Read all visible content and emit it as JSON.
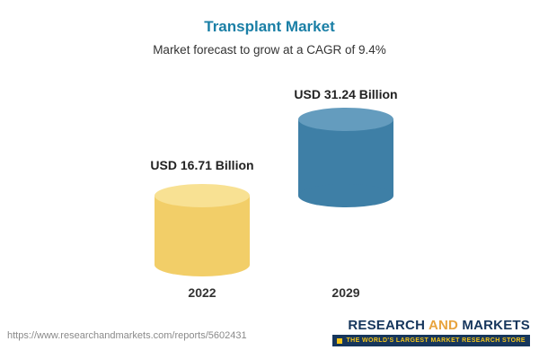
{
  "header": {
    "title": "Transplant Market",
    "subtitle": "Market forecast to grow at a CAGR of 9.4%"
  },
  "chart_data": {
    "type": "bar",
    "title": "Transplant Market",
    "subtitle": "Market forecast to grow at a CAGR of 9.4%",
    "categories": [
      "2022",
      "2029"
    ],
    "values": [
      16.71,
      31.24
    ],
    "unit": "USD Billion",
    "value_labels": [
      "USD 16.71 Billion",
      "USD 31.24 Billion"
    ],
    "cagr": "9.4%",
    "colors": {
      "bar_2022": "#f2ce68",
      "bar_2029_top": "#3e7fa6",
      "bar_2029_bottom": "#f2ce68",
      "title": "#1a7fa6"
    },
    "legend_position": "none",
    "grid": false
  },
  "footer": {
    "url": "https://www.researchandmarkets.com/reports/5602431",
    "logo": {
      "word1": "RESEARCH",
      "word2": "AND",
      "word3": "MARKETS",
      "tagline": "THE WORLD'S LARGEST MARKET RESEARCH STORE"
    }
  }
}
